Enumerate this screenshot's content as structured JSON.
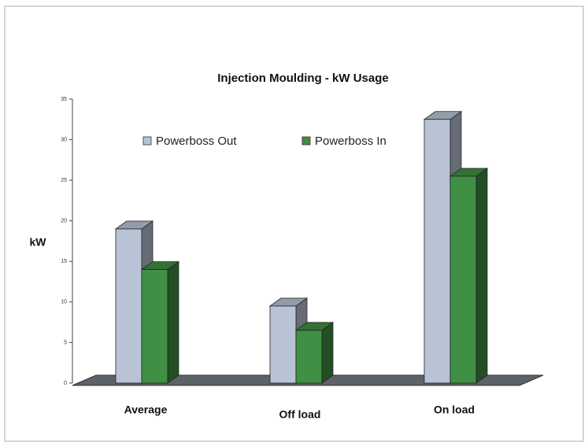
{
  "chart_data": {
    "type": "bar3d",
    "title": "Injection Moulding - kW Usage",
    "y_label": "kW",
    "categories": [
      "Average",
      "Off load",
      "On load"
    ],
    "series": [
      {
        "name": "Powerboss Out",
        "color": "#b9c3d6",
        "values": [
          19,
          9.5,
          32.5
        ]
      },
      {
        "name": "Powerboss In",
        "color": "#3f8f44",
        "values": [
          14,
          6.5,
          25.5
        ]
      }
    ],
    "ylim": [
      0,
      35
    ],
    "yticks": [
      0,
      5,
      10,
      15,
      20,
      25,
      30,
      35
    ]
  }
}
